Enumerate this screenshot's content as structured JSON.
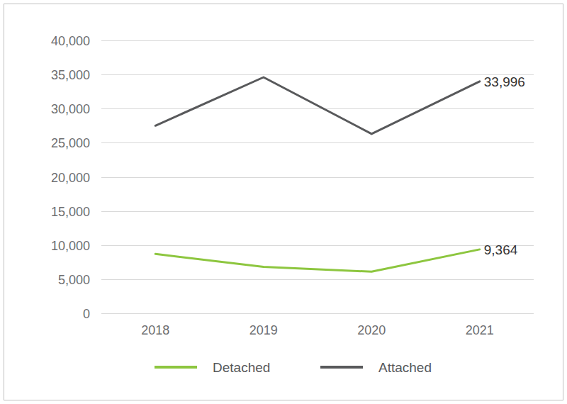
{
  "chart_data": {
    "type": "line",
    "categories": [
      "2018",
      "2019",
      "2020",
      "2021"
    ],
    "series": [
      {
        "name": "Detached",
        "color": "#8dc63f",
        "values": [
          8700,
          6800,
          6100,
          9364
        ],
        "value_labels": [
          null,
          null,
          null,
          "9,364"
        ]
      },
      {
        "name": "Attached",
        "color": "#58595b",
        "values": [
          27500,
          34600,
          26300,
          33996
        ],
        "value_labels": [
          null,
          null,
          null,
          "33,996"
        ]
      }
    ],
    "ylim": [
      0,
      40000
    ],
    "yticks": [
      0,
      {
        "value": 5000,
        "label": "5,000"
      },
      {
        "value": 10000,
        "label": "10,000"
      },
      {
        "value": 15000,
        "label": "15,000"
      },
      {
        "value": 20000,
        "label": "20,000"
      },
      {
        "value": 25000,
        "label": "25,000"
      },
      {
        "value": 30000,
        "label": "30,000"
      },
      {
        "value": 35000,
        "label": "35,000"
      },
      {
        "value": 40000,
        "label": "40,000"
      }
    ],
    "grid": true,
    "legend": "bottom"
  }
}
